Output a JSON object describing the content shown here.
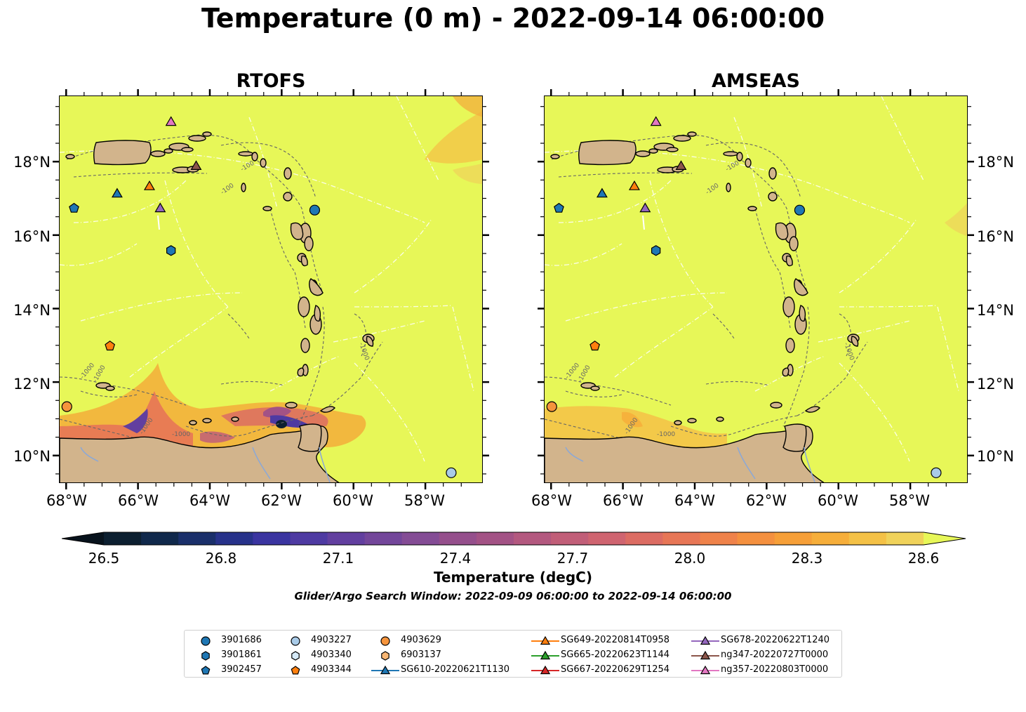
{
  "title": "Temperature (0 m) - 2022-09-14 06:00:00",
  "panels": [
    {
      "title": "RTOFS"
    },
    {
      "title": "AMSEAS"
    }
  ],
  "lon_labels": [
    "68°W",
    "66°W",
    "64°W",
    "62°W",
    "60°W",
    "58°W"
  ],
  "lat_labels": [
    "18°N",
    "16°N",
    "14°N",
    "12°N",
    "10°N"
  ],
  "contour_labels": [
    "-1000",
    "-100"
  ],
  "colorbar": {
    "label": "Temperature (degC)",
    "ticks": [
      "26.5",
      "26.8",
      "27.1",
      "27.4",
      "27.7",
      "28.0",
      "28.3",
      "28.6"
    ],
    "range": [
      26.5,
      28.6
    ],
    "colors": [
      "#0c1f30",
      "#10284b",
      "#1a2f6a",
      "#27328a",
      "#3a34a0",
      "#4e3aa2",
      "#623f9f",
      "#73469a",
      "#844c95",
      "#954f8c",
      "#a35285",
      "#b3587f",
      "#c15e78",
      "#cf6470",
      "#dc6c63",
      "#e77656",
      "#ef824a",
      "#f4903f",
      "#f69f38",
      "#f6ae3a",
      "#f4c146",
      "#f0d25a"
    ],
    "over_color": "#e7f758",
    "under_color": "#07121c"
  },
  "search_window": "Glider/Argo Search Window: 2022-09-09 06:00:00 to 2022-09-14 06:00:00",
  "legend": [
    {
      "label": "3901686",
      "marker": "circle",
      "color": "#1f77b4",
      "line": false
    },
    {
      "label": "3901861",
      "marker": "hexagon",
      "color": "#1f77b4",
      "line": false
    },
    {
      "label": "3902457",
      "marker": "pentagon",
      "color": "#1f77b4",
      "line": false
    },
    {
      "label": "4903227",
      "marker": "circle",
      "color": "#a9cbe8",
      "line": false
    },
    {
      "label": "4903340",
      "marker": "hexagon",
      "color": "#d6eaf8",
      "line": false
    },
    {
      "label": "4903344",
      "marker": "pentagon",
      "color": "#ff7f0e",
      "line": false
    },
    {
      "label": "4903629",
      "marker": "circle",
      "color": "#f5943c",
      "line": false
    },
    {
      "label": "6903137",
      "marker": "hexagon",
      "color": "#f8b673",
      "line": false
    },
    {
      "label": "SG610-20220621T1130",
      "marker": "triangle",
      "color": "#1f77b4",
      "line": true
    },
    {
      "label": "SG649-20220814T0958",
      "marker": "triangle",
      "color": "#ff7f0e",
      "line": true
    },
    {
      "label": "SG665-20220623T1144",
      "marker": "triangle",
      "color": "#2ca02c",
      "line": true
    },
    {
      "label": "SG667-20220629T1254",
      "marker": "triangle",
      "color": "#d62728",
      "line": true
    },
    {
      "label": "SG678-20220622T1240",
      "marker": "triangle",
      "color": "#9467bd",
      "line": true
    },
    {
      "label": "ng347-20220727T0000",
      "marker": "triangle",
      "color": "#8c564b",
      "line": true
    },
    {
      "label": "ng357-20220803T0000",
      "marker": "triangle",
      "color": "#e377c2",
      "line": true
    }
  ],
  "map_points": [
    {
      "label": "3901686",
      "lon": -61.1,
      "lat": 16.7
    },
    {
      "label": "3901861",
      "lon": -65.1,
      "lat": 15.6
    },
    {
      "label": "3902457",
      "lon": -67.8,
      "lat": 16.75
    },
    {
      "label": "4903227",
      "lon": -57.3,
      "lat": 9.55
    },
    {
      "label": "4903344",
      "lon": -66.8,
      "lat": 13.0
    },
    {
      "label": "4903629",
      "lon": -68.0,
      "lat": 11.35
    },
    {
      "label": "SG610-20220621T1130",
      "lon": -66.6,
      "lat": 17.15
    },
    {
      "label": "SG649-20220814T0958",
      "lon": -65.7,
      "lat": 17.35
    },
    {
      "label": "SG678-20220622T1240",
      "lon": -65.4,
      "lat": 16.75
    },
    {
      "label": "ng347-20220727T0000",
      "lon": -64.4,
      "lat": 17.9
    },
    {
      "label": "ng357-20220803T0000",
      "lon": -65.1,
      "lat": 19.1
    }
  ],
  "map_extent": {
    "lon": [
      -68.2,
      -56.4
    ],
    "lat": [
      9.25,
      19.8
    ]
  },
  "land_color": "#d2b48c"
}
